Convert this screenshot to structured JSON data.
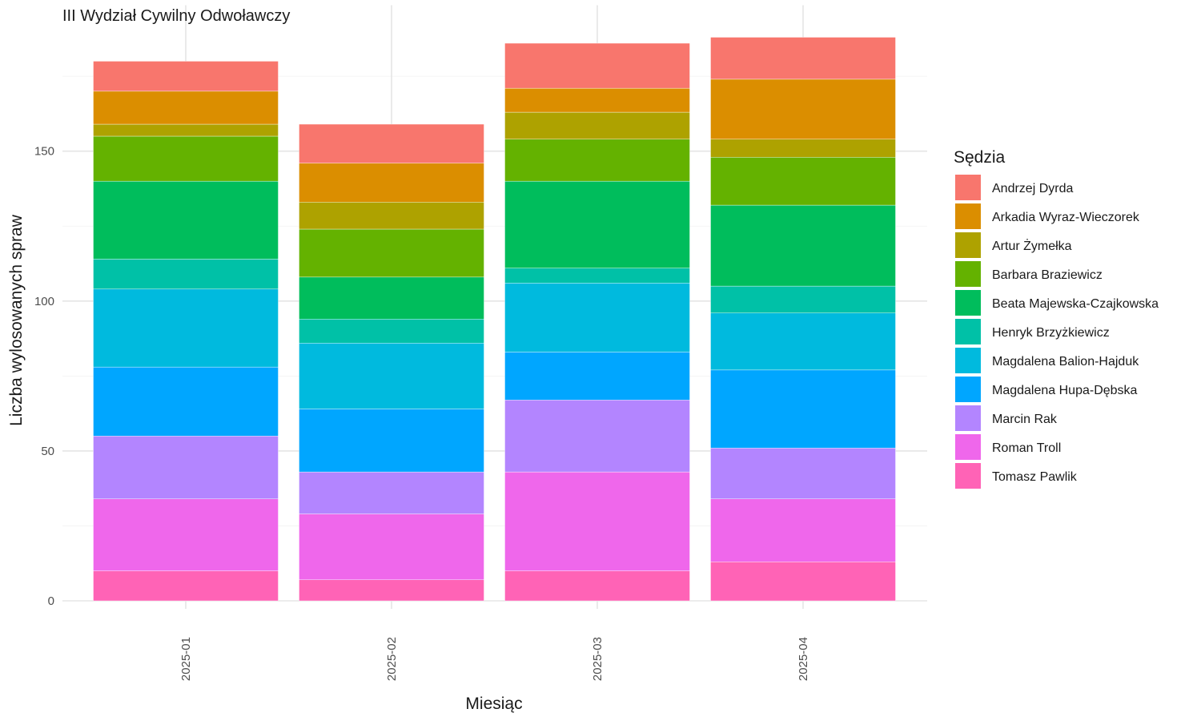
{
  "chart_data": {
    "type": "bar",
    "stacked": true,
    "title": "III Wydział Cywilny Odwoławczy",
    "xlabel": "Miesiąc",
    "ylabel": "Liczba wylosowanych spraw",
    "ylim": [
      0,
      188
    ],
    "yticks": [
      0,
      50,
      100,
      150
    ],
    "categories": [
      "2025-01",
      "2025-02",
      "2025-03",
      "2025-04"
    ],
    "legend_title": "Sędzia",
    "legend_position": "right",
    "grid": true,
    "series": [
      {
        "name": "Andrzej Dyrda",
        "color": "#F8766D",
        "values": [
          10,
          13,
          15,
          14
        ]
      },
      {
        "name": "Arkadia Wyraz-Wieczorek",
        "color": "#DB8E00",
        "values": [
          11,
          13,
          8,
          20
        ]
      },
      {
        "name": "Artur Żymełka",
        "color": "#AEA200",
        "values": [
          4,
          9,
          9,
          6
        ]
      },
      {
        "name": "Barbara Braziewicz",
        "color": "#64B200",
        "values": [
          15,
          16,
          14,
          16
        ]
      },
      {
        "name": "Beata Majewska-Czajkowska",
        "color": "#00BD5C",
        "values": [
          26,
          14,
          29,
          27
        ]
      },
      {
        "name": "Henryk Brzyżkiewicz",
        "color": "#00C1A7",
        "values": [
          10,
          8,
          5,
          9
        ]
      },
      {
        "name": "Magdalena Balion-Hajduk",
        "color": "#00BADE",
        "values": [
          26,
          22,
          23,
          19
        ]
      },
      {
        "name": "Magdalena Hupa-Dębska",
        "color": "#00A6FF",
        "values": [
          23,
          21,
          16,
          26
        ]
      },
      {
        "name": "Marcin Rak",
        "color": "#B385FF",
        "values": [
          21,
          14,
          24,
          17
        ]
      },
      {
        "name": "Roman Troll",
        "color": "#EF67EB",
        "values": [
          24,
          22,
          33,
          21
        ]
      },
      {
        "name": "Tomasz Pawlik",
        "color": "#FF63B6",
        "values": [
          10,
          7,
          10,
          13
        ]
      }
    ]
  }
}
